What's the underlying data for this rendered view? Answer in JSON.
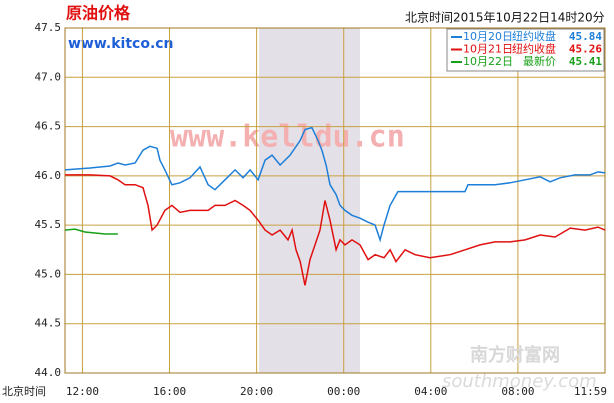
{
  "chart_data": {
    "type": "line",
    "title": "原油价格",
    "source": "www.kitco.cn",
    "subtitle": "北京时间2015年10月22日14时20分",
    "x_label": "北京时间",
    "watermark": "www.kelldu.cn",
    "logo_text": "南方财富网",
    "logo_subtext": "southmoney.com",
    "xlim": [
      -0.8,
      24
    ],
    "ylim": [
      44.0,
      47.5
    ],
    "xticks": [
      {
        "value": 0,
        "label": "12:00"
      },
      {
        "value": 4,
        "label": "16:00"
      },
      {
        "value": 8,
        "label": "20:00"
      },
      {
        "value": 12,
        "label": "00:00"
      },
      {
        "value": 16,
        "label": "04:00"
      },
      {
        "value": 20,
        "label": "08:00"
      },
      {
        "value": 24,
        "label": "11:59"
      }
    ],
    "yticks": [
      {
        "value": 44.0,
        "label": "44.0"
      },
      {
        "value": 44.5,
        "label": "44.5"
      },
      {
        "value": 45.0,
        "label": "45.0"
      },
      {
        "value": 45.5,
        "label": "45.5"
      },
      {
        "value": 46.0,
        "label": "46.0"
      },
      {
        "value": 46.5,
        "label": "46.5"
      },
      {
        "value": 47.0,
        "label": "47.0"
      },
      {
        "value": 47.5,
        "label": "47.5"
      }
    ],
    "grid": true,
    "highlight_x": [
      8.11,
      12.75
    ],
    "highlight_color": "#e4e0e8",
    "grid_color": "#c8a040",
    "series": [
      {
        "name": "10月20日",
        "legend_label": "纽约收盘",
        "legend_value": 45.84,
        "color": "#1e7fd8",
        "x": [
          -0.8,
          0.35,
          1.27,
          1.63,
          1.96,
          2.42,
          2.78,
          3.1,
          3.43,
          3.56,
          3.79,
          4.11,
          4.48,
          4.94,
          5.4,
          5.77,
          6.09,
          6.55,
          7.01,
          7.38,
          7.7,
          8.07,
          8.39,
          8.71,
          9.08,
          9.54,
          10.0,
          10.22,
          10.54,
          10.82,
          11.0,
          11.19,
          11.37,
          11.65,
          11.83,
          12.06,
          12.38,
          12.75,
          13.12,
          13.44,
          13.67,
          13.85,
          14.13,
          14.49,
          15.05,
          15.96,
          16.88,
          17.57,
          17.71,
          18.26,
          18.95,
          19.64,
          20.33,
          21.02,
          21.48,
          21.94,
          22.62,
          23.31,
          23.68,
          24.0
        ],
        "values": [
          46.06,
          46.08,
          46.1,
          46.13,
          46.11,
          46.13,
          46.26,
          46.3,
          46.28,
          46.16,
          46.06,
          45.91,
          45.93,
          45.98,
          46.09,
          45.91,
          45.86,
          45.96,
          46.06,
          45.98,
          46.06,
          45.96,
          46.16,
          46.21,
          46.11,
          46.21,
          46.36,
          46.47,
          46.49,
          46.36,
          46.26,
          46.11,
          45.91,
          45.81,
          45.7,
          45.65,
          45.6,
          45.57,
          45.53,
          45.5,
          45.35,
          45.5,
          45.7,
          45.84,
          45.84,
          45.84,
          45.84,
          45.84,
          45.91,
          45.91,
          45.91,
          45.93,
          45.96,
          45.99,
          45.94,
          45.98,
          46.01,
          46.01,
          46.04,
          46.03
        ]
      },
      {
        "name": "10月21日",
        "legend_label": "纽约收盘",
        "legend_value": 45.26,
        "color": "#e01010",
        "x": [
          -0.8,
          0.35,
          1.27,
          1.63,
          1.96,
          2.42,
          2.78,
          3.01,
          3.2,
          3.43,
          3.79,
          4.11,
          4.48,
          4.94,
          5.4,
          5.77,
          6.09,
          6.55,
          7.01,
          7.38,
          7.7,
          8.07,
          8.39,
          8.71,
          9.08,
          9.44,
          9.63,
          9.81,
          10.0,
          10.22,
          10.45,
          10.68,
          10.91,
          11.14,
          11.37,
          11.65,
          11.83,
          12.06,
          12.38,
          12.75,
          13.12,
          13.44,
          13.85,
          14.13,
          14.4,
          14.82,
          15.28,
          15.96,
          16.88,
          17.57,
          18.26,
          18.95,
          19.64,
          20.33,
          21.02,
          21.71,
          22.4,
          23.08,
          23.68,
          24.0
        ],
        "values": [
          46.01,
          46.01,
          46.0,
          45.96,
          45.91,
          45.91,
          45.88,
          45.7,
          45.45,
          45.5,
          45.65,
          45.7,
          45.63,
          45.65,
          45.65,
          45.65,
          45.7,
          45.7,
          45.75,
          45.7,
          45.65,
          45.55,
          45.45,
          45.4,
          45.45,
          45.35,
          45.45,
          45.25,
          45.13,
          44.89,
          45.15,
          45.3,
          45.45,
          45.75,
          45.55,
          45.25,
          45.35,
          45.3,
          45.35,
          45.3,
          45.15,
          45.2,
          45.17,
          45.25,
          45.13,
          45.25,
          45.2,
          45.17,
          45.2,
          45.25,
          45.3,
          45.33,
          45.33,
          45.35,
          45.4,
          45.38,
          45.47,
          45.45,
          45.48,
          45.45
        ]
      },
      {
        "name": "10月22日",
        "legend_label": "最新价",
        "legend_value": 45.41,
        "color": "#18a018",
        "x": [
          -0.8,
          -0.34,
          0.12,
          0.58,
          1.04,
          1.63
        ],
        "values": [
          45.45,
          45.46,
          45.43,
          45.42,
          45.41,
          45.41
        ]
      }
    ]
  }
}
